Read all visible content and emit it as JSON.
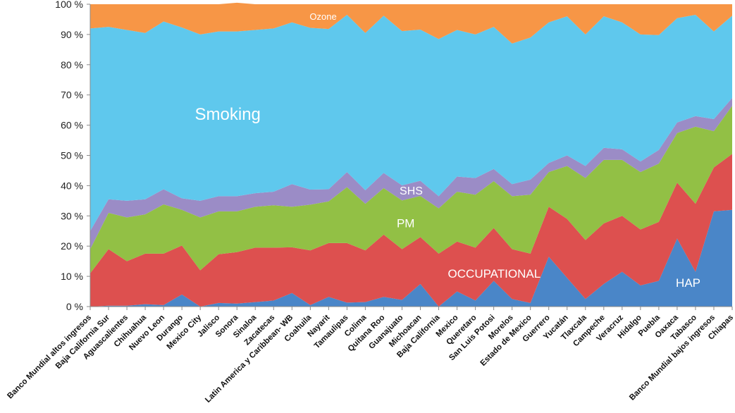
{
  "chart_data": {
    "type": "area",
    "stacked": true,
    "percent": true,
    "grid": false,
    "ylim": [
      0,
      100
    ],
    "y_ticks": [
      "0 %",
      "10 %",
      "20 %",
      "30 %",
      "40 %",
      "50 %",
      "60 %",
      "70 %",
      "80 %",
      "90 %",
      "100 %"
    ],
    "categories": [
      "Banco Mundial altos ingresos",
      "Baja California Sur",
      "Aguascalientes",
      "Chihuahua",
      "Nuevo Leon",
      "Durango",
      "Mexico City",
      "Jalisco",
      "Sonora",
      "Sinaloa",
      "Zacatecas",
      "Latin America y Caribbean- WB",
      "Coahuila",
      "Nayarit",
      "Tamaulipas",
      "Colima",
      "Quitana Roo",
      "Guanajuato",
      "Michoacan",
      "Baja California",
      "Mexico",
      "Queretaro",
      "San Luis Potosi",
      "Morelos",
      "Estado de Mexico",
      "Guerrero",
      "Yucatán",
      "Tlaxcala",
      "Campeche",
      "Veracruz",
      "Hidalgo",
      "Puebla",
      "Oaxaca",
      "Tabasco",
      "Banco Mundial bajos ingresos",
      "Chiapas"
    ],
    "series": [
      {
        "name": "HAP",
        "color": "#4a86c8",
        "values": [
          0,
          0.3,
          0.3,
          0.8,
          0.5,
          4,
          0,
          1.2,
          1,
          1.5,
          2,
          4.5,
          0.5,
          3.2,
          1.3,
          1.5,
          3.2,
          2.2,
          7.5,
          0,
          5,
          2,
          8.5,
          2.5,
          1.2,
          16.5,
          9.5,
          2.5,
          7.5,
          11.5,
          7,
          8.5,
          22.5,
          11.5,
          31.5,
          32
        ]
      },
      {
        "name": "OCCUPATIONAL",
        "color": "#dd504f",
        "values": [
          11,
          18.7,
          14.7,
          16.7,
          17,
          16.2,
          12,
          16.1,
          17,
          18,
          17.5,
          15.1,
          18.1,
          17.8,
          19.7,
          17.1,
          20.6,
          16.8,
          15.5,
          17.5,
          16.5,
          17.5,
          17.5,
          16.5,
          16.3,
          16.5,
          19.5,
          19.5,
          20,
          18.5,
          18.5,
          19.5,
          18.5,
          22.5,
          14.5,
          18.5
        ]
      },
      {
        "name": "PM",
        "color": "#92c045",
        "values": [
          8,
          12,
          14.5,
          13,
          16.3,
          11.8,
          17.5,
          14.2,
          13.5,
          13.5,
          14,
          13.4,
          15.1,
          13.8,
          18.5,
          15.4,
          15.4,
          16.1,
          13.6,
          15,
          16.5,
          17.5,
          15.5,
          17.5,
          19.5,
          11.5,
          17.5,
          20.5,
          21,
          18.5,
          19,
          19.3,
          16.4,
          25.5,
          12,
          15.9
        ]
      },
      {
        "name": "SHS",
        "color": "#9b8cc6",
        "values": [
          6,
          4.5,
          5.5,
          5,
          5,
          3.8,
          5.5,
          5,
          5,
          4.5,
          4.5,
          7.5,
          5,
          4,
          5,
          4.5,
          5,
          5,
          5,
          4,
          5,
          5.5,
          4,
          4,
          5,
          3,
          3.5,
          4,
          4,
          3.5,
          3.5,
          4.5,
          3.5,
          3.5,
          4,
          2.6
        ]
      },
      {
        "name": "Smoking",
        "color": "#5fc8ed",
        "values": [
          67,
          57,
          56.5,
          55,
          55.5,
          56.5,
          55,
          54.5,
          54.5,
          54,
          54,
          53.5,
          53.5,
          53,
          52,
          52,
          52,
          51,
          50,
          52,
          48.5,
          47.5,
          47,
          46.5,
          47,
          46.5,
          46,
          43.5,
          43.5,
          42,
          42,
          38,
          34.5,
          33.5,
          29,
          27.2
        ]
      },
      {
        "name": "Ozone",
        "color": "#f79646",
        "values": [
          8,
          7.5,
          8.5,
          9.5,
          5.7,
          7.7,
          10,
          9,
          9.5,
          8.5,
          8,
          6,
          7.8,
          8.2,
          3.5,
          9.5,
          3.8,
          8.9,
          8.4,
          11.5,
          8.5,
          10,
          7.5,
          13,
          11,
          6,
          4,
          10,
          4,
          6,
          10,
          10.2,
          4.6,
          3.5,
          9,
          3.8
        ]
      }
    ]
  }
}
